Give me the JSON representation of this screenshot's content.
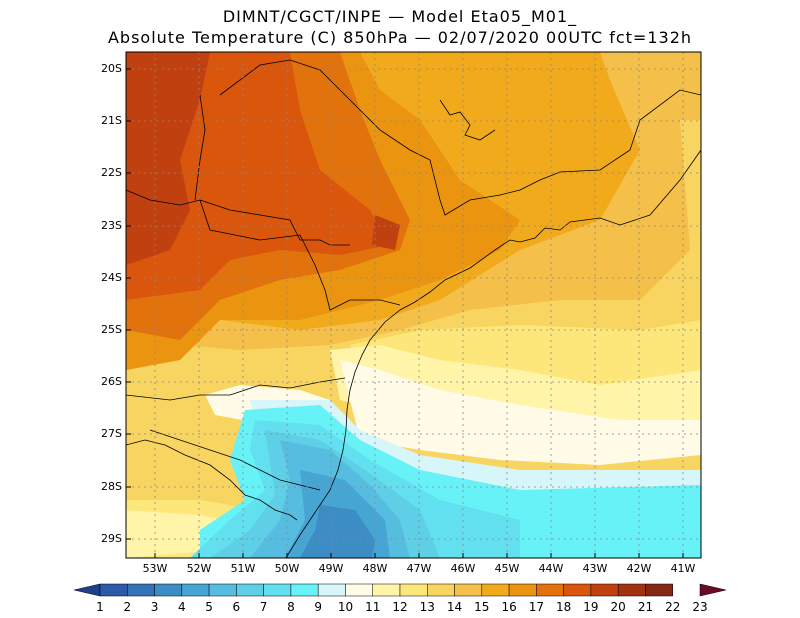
{
  "header": {
    "line1": "DIMNT/CGCT/INPE —  Model Eta05_M01_",
    "line2": "Absolute Temperature (C) 850hPa —  02/07/2020 00UTC fct=132h"
  },
  "axes": {
    "lat_labels": [
      "20S",
      "21S",
      "22S",
      "23S",
      "24S",
      "25S",
      "26S",
      "27S",
      "28S",
      "29S"
    ],
    "lon_labels": [
      "53W",
      "52W",
      "51W",
      "50W",
      "49W",
      "48W",
      "47W",
      "46W",
      "45W",
      "44W",
      "43W",
      "42W",
      "41W"
    ]
  },
  "colorbar": {
    "labels": [
      "1",
      "2",
      "3",
      "4",
      "5",
      "6",
      "7",
      "8",
      "9",
      "10",
      "11",
      "12",
      "13",
      "14",
      "15",
      "16",
      "17",
      "18",
      "19",
      "20",
      "21",
      "22",
      "23"
    ],
    "colors": [
      "#1c3f8e",
      "#2a5aa8",
      "#3473b8",
      "#3c8cc6",
      "#47a5d3",
      "#56bde0",
      "#5ecfe6",
      "#62e0ef",
      "#66f2f7",
      "#d6f6fa",
      "#fffbe6",
      "#fff4a8",
      "#fde67a",
      "#f8d461",
      "#f5c049",
      "#f2aa1d",
      "#eb9410",
      "#e2720c",
      "#d9560c",
      "#c0400f",
      "#a33310",
      "#862713",
      "#6b0b22"
    ]
  },
  "map_colors": {
    "c9": "#66f2f7",
    "c8": "#62e0ef",
    "c7": "#5ecfe6",
    "c6": "#56bde0",
    "c5": "#47a5d3",
    "c4": "#3c8cc6",
    "c10": "#d6f6fa",
    "c11": "#fffbe6",
    "c12": "#fff4a8",
    "c13": "#fde67a",
    "c14": "#f8d461",
    "c15": "#f5c049",
    "c16": "#f2aa1d",
    "c17": "#eb9410",
    "c18": "#e2720c",
    "c19": "#d9560c",
    "c20": "#c0400f"
  }
}
